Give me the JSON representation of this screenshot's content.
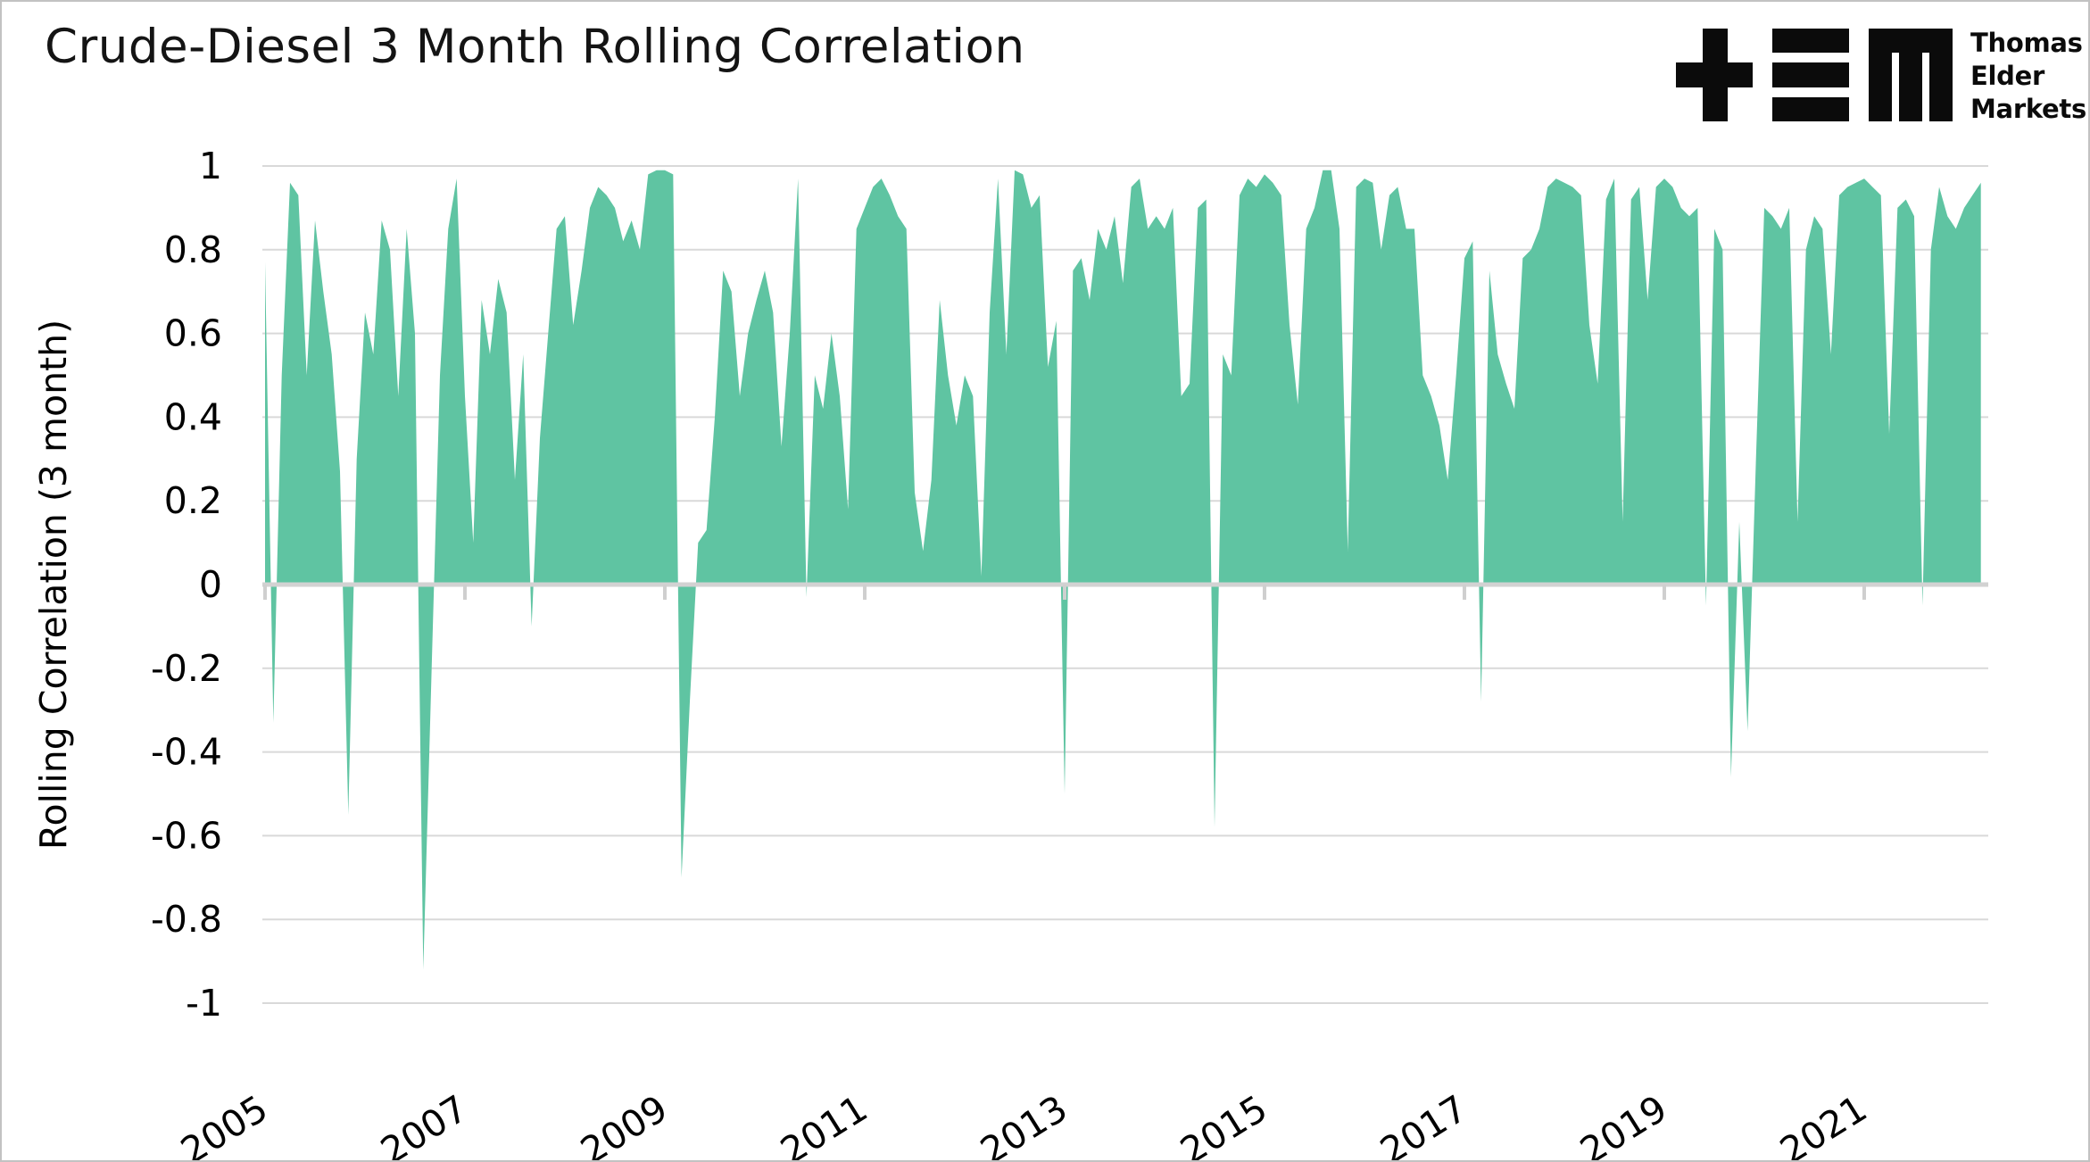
{
  "title": "Crude-Diesel 3 Month Rolling Correlation",
  "logo": {
    "line1": "Thomas",
    "line2": "Elder",
    "line3": "Markets"
  },
  "colors": {
    "area": "#5fc4a2",
    "grid": "#d9d9d9",
    "zero_line": "#d2d2d2",
    "tick": "#cfcfcf",
    "text": "#000000",
    "title_text": "#141414",
    "background": "#ffffff",
    "border": "#c2c2c2"
  },
  "chart_data": {
    "type": "area",
    "title": "Crude-Diesel 3 Month Rolling Correlation",
    "xlabel": "",
    "ylabel": "Rolling Correlation (3 month)",
    "ylim": [
      -1,
      1
    ],
    "grid": true,
    "legend_position": "none",
    "x_start_year": 2005.0,
    "x_step_years": 0.08333333,
    "x_end_year": 2022.17,
    "x_tick_years": [
      2005,
      2007,
      2009,
      2011,
      2013,
      2015,
      2017,
      2019,
      2021
    ],
    "x_tick_labels": [
      "2005",
      "2007",
      "2009",
      "2011",
      "2013",
      "2015",
      "2017",
      "2019",
      "2021"
    ],
    "y_ticks": [
      1,
      0.8,
      0.6,
      0.4,
      0.2,
      0,
      -0.2,
      -0.4,
      -0.6,
      -0.8,
      -1
    ],
    "y_tick_labels": [
      "1",
      "0.8",
      "0.6",
      "0.4",
      "0.2",
      "0",
      "-0.2",
      "-0.4",
      "-0.6",
      "-0.8",
      "-1"
    ],
    "values": [
      0.77,
      -0.33,
      0.5,
      0.96,
      0.93,
      0.5,
      0.87,
      0.7,
      0.55,
      0.27,
      -0.55,
      0.3,
      0.65,
      0.55,
      0.87,
      0.8,
      0.45,
      0.85,
      0.6,
      -0.92,
      -0.2,
      0.5,
      0.85,
      0.97,
      0.45,
      0.1,
      0.68,
      0.55,
      0.73,
      0.65,
      0.25,
      0.55,
      -0.1,
      0.35,
      0.6,
      0.85,
      0.88,
      0.62,
      0.75,
      0.9,
      0.95,
      0.93,
      0.9,
      0.82,
      0.87,
      0.8,
      0.98,
      0.99,
      0.99,
      0.98,
      -0.7,
      -0.28,
      0.1,
      0.13,
      0.4,
      0.75,
      0.7,
      0.45,
      0.6,
      0.68,
      0.75,
      0.65,
      0.33,
      0.6,
      0.97,
      -0.03,
      0.5,
      0.42,
      0.6,
      0.45,
      0.18,
      0.85,
      0.9,
      0.95,
      0.97,
      0.93,
      0.88,
      0.85,
      0.22,
      0.08,
      0.25,
      0.68,
      0.5,
      0.38,
      0.5,
      0.45,
      0.02,
      0.65,
      0.97,
      0.55,
      0.99,
      0.98,
      0.9,
      0.93,
      0.52,
      0.63,
      -0.5,
      0.75,
      0.78,
      0.68,
      0.85,
      0.8,
      0.88,
      0.72,
      0.95,
      0.97,
      0.85,
      0.88,
      0.85,
      0.9,
      0.45,
      0.48,
      0.9,
      0.92,
      -0.58,
      0.55,
      0.5,
      0.93,
      0.97,
      0.95,
      0.98,
      0.96,
      0.93,
      0.62,
      0.43,
      0.85,
      0.9,
      0.99,
      0.99,
      0.85,
      0.08,
      0.95,
      0.97,
      0.96,
      0.8,
      0.93,
      0.95,
      0.85,
      0.85,
      0.5,
      0.45,
      0.38,
      0.25,
      0.5,
      0.78,
      0.82,
      -0.28,
      0.75,
      0.55,
      0.48,
      0.42,
      0.78,
      0.8,
      0.85,
      0.95,
      0.97,
      0.96,
      0.95,
      0.93,
      0.62,
      0.48,
      0.92,
      0.97,
      0.15,
      0.92,
      0.95,
      0.68,
      0.95,
      0.97,
      0.95,
      0.9,
      0.88,
      0.9,
      -0.05,
      0.85,
      0.8,
      -0.46,
      0.15,
      -0.35,
      0.3,
      0.9,
      0.88,
      0.85,
      0.9,
      0.15,
      0.8,
      0.88,
      0.85,
      0.55,
      0.93,
      0.95,
      0.96,
      0.97,
      0.95,
      0.93,
      0.36,
      0.9,
      0.92,
      0.88,
      -0.05,
      0.8,
      0.95,
      0.88,
      0.85,
      0.9,
      0.93,
      0.96
    ]
  }
}
